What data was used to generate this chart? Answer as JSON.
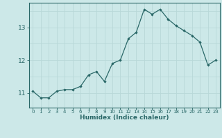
{
  "x": [
    0,
    1,
    2,
    3,
    4,
    5,
    6,
    7,
    8,
    9,
    10,
    11,
    12,
    13,
    14,
    15,
    16,
    17,
    18,
    19,
    20,
    21,
    22,
    23
  ],
  "y": [
    11.05,
    10.85,
    10.85,
    11.05,
    11.1,
    11.1,
    11.2,
    11.55,
    11.65,
    11.35,
    11.9,
    12.0,
    12.65,
    12.85,
    13.55,
    13.4,
    13.55,
    13.25,
    13.05,
    12.9,
    12.75,
    12.55,
    11.85,
    12.0
  ],
  "xlabel": "Humidex (Indice chaleur)",
  "bg_color": "#cce8e8",
  "grid_major_color": "#b8d8d8",
  "grid_minor_color": "#d4e8e8",
  "line_color": "#2a6868",
  "marker_color": "#2a6868",
  "tick_label_color": "#2a6868",
  "xlabel_color": "#2a6868",
  "yticks": [
    11,
    12,
    13
  ],
  "ylim": [
    10.55,
    13.75
  ],
  "xlim": [
    -0.5,
    23.5
  ]
}
